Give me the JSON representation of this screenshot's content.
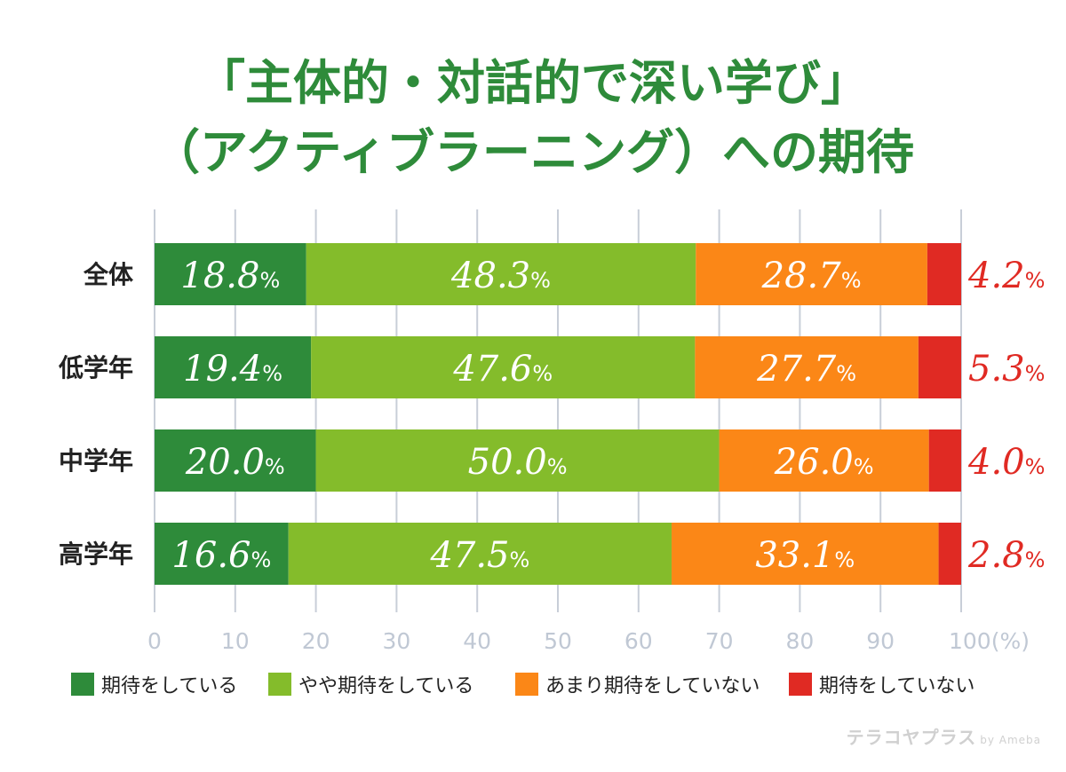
{
  "title_line1": "「主体的・対話的で深い学び」",
  "title_line2": "（アクティブラーニング）への期待",
  "watermark_main": "テラコヤプラス",
  "watermark_sub": "by Ameba",
  "colors": {
    "title": "#2e8b3a",
    "series": [
      "#2e8b3a",
      "#84bc2b",
      "#fb8717",
      "#e02a23"
    ],
    "grid": "#c8ced8",
    "tick": "#c0c8d4",
    "category": "#222222",
    "outside_label": "#e02a23"
  },
  "chart_data": {
    "type": "bar",
    "orientation": "horizontal",
    "stacked": true,
    "categories": [
      "全体",
      "低学年",
      "中学年",
      "高学年"
    ],
    "series": [
      {
        "name": "期待をしている",
        "values": [
          18.8,
          19.4,
          20.0,
          16.6
        ]
      },
      {
        "name": "やや期待をしている",
        "values": [
          48.3,
          47.6,
          50.0,
          47.5
        ]
      },
      {
        "name": "あまり期待をしていない",
        "values": [
          28.7,
          27.7,
          26.0,
          33.1
        ]
      },
      {
        "name": "期待をしていない",
        "values": [
          4.2,
          5.3,
          4.0,
          2.8
        ]
      }
    ],
    "xlim": [
      0,
      100
    ],
    "xticks": [
      "0",
      "10",
      "20",
      "30",
      "40",
      "50",
      "60",
      "70",
      "80",
      "90",
      "100(%)"
    ],
    "grid": true,
    "legend_position": "bottom",
    "value_unit": "%"
  }
}
